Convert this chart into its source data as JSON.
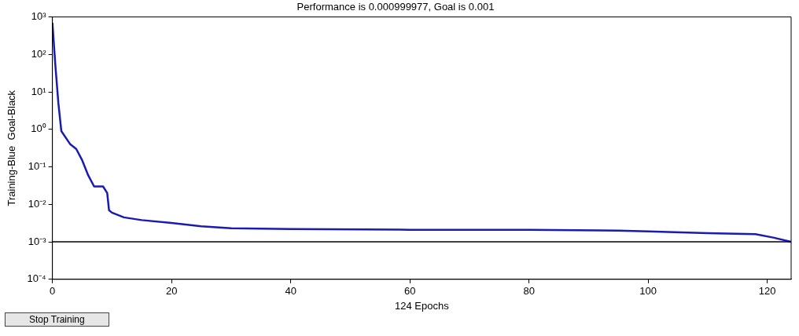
{
  "chart_data": {
    "type": "line",
    "title": "Performance is 0.000999977, Goal is 0.001",
    "xlabel": "124 Epochs",
    "ylabel": "Training-Blue  Goal-Black",
    "x": [
      0,
      0.5,
      1,
      1.5,
      3,
      4,
      5,
      6,
      7,
      8.5,
      9.2,
      9.5,
      10,
      12,
      15,
      20,
      25,
      30,
      40,
      60,
      80,
      95,
      100,
      110,
      118,
      121,
      124
    ],
    "series": [
      {
        "color": "#1a1ab4",
        "values": [
          700,
          50,
          5,
          0.9,
          0.4,
          0.3,
          0.15,
          0.06,
          0.03,
          0.03,
          0.02,
          0.007,
          0.006,
          0.0045,
          0.0038,
          0.0032,
          0.0026,
          0.0023,
          0.0022,
          0.0021,
          0.0021,
          0.002,
          0.0019,
          0.0017,
          0.0016,
          0.0013,
          0.001
        ]
      }
    ],
    "log": "y",
    "xlim": [
      0,
      124
    ],
    "xticks": [
      0,
      20,
      40,
      60,
      80,
      100,
      120
    ],
    "ylim": [
      0.0001,
      1000
    ],
    "yticks": [
      {
        "value": 0.0001,
        "label": "10⁻⁴"
      },
      {
        "value": 0.001,
        "label": "10⁻³"
      },
      {
        "value": 0.01,
        "label": "10⁻²"
      },
      {
        "value": 0.1,
        "label": "10⁻¹"
      },
      {
        "value": 1,
        "label": "10⁰"
      },
      {
        "value": 10,
        "label": "10¹"
      },
      {
        "value": 100,
        "label": "10²"
      },
      {
        "value": 1000,
        "label": "10³"
      }
    ],
    "ref_lines": [
      {
        "axis": "y",
        "value": 0.001,
        "color": "#000000"
      }
    ],
    "grid": false,
    "legend": false,
    "marker": "none",
    "line_style": "solid",
    "annotations": [
      "Stop Training"
    ]
  }
}
